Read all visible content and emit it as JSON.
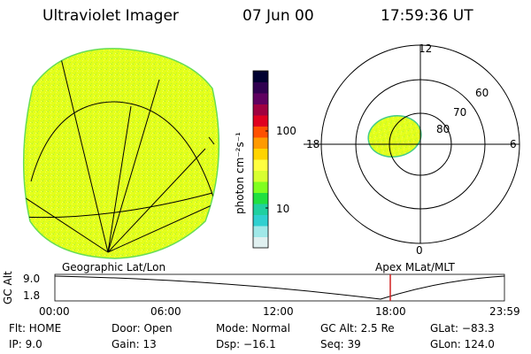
{
  "header": {
    "title": "Ultraviolet Imager",
    "date": "07 Jun 00",
    "time": "17:59:36 UT"
  },
  "colorbar": {
    "unit_label": "photon cm⁻²s⁻¹",
    "ticks": [
      "100",
      "10"
    ],
    "colors": [
      "#000030",
      "#300050",
      "#600060",
      "#a00040",
      "#e00020",
      "#ff5000",
      "#ff9a00",
      "#ffd400",
      "#ffff40",
      "#d8ff30",
      "#80ff20",
      "#20e040",
      "#20d0a0",
      "#30d0d0",
      "#a0e8e8",
      "#e0f0f0"
    ]
  },
  "left_panel": {
    "label": "Geographic Lat/Lon",
    "fill_color": "#e4ff1a",
    "edge_color": "#66dd55"
  },
  "right_panel": {
    "label": "Apex MLat/MLT",
    "mlt_labels": {
      "top": "12",
      "left": "18",
      "right": "6",
      "bottom": "0"
    },
    "lat_labels": [
      "80",
      "70",
      "60"
    ],
    "fill_color": "#e4ff1a"
  },
  "altitude_panel": {
    "y_title": "GC Alt",
    "y_ticks": [
      "9.0",
      "1.8"
    ],
    "x_ticks": [
      "00:00",
      "06:00",
      "12:00",
      "18:00",
      "23:59"
    ],
    "marker_color": "#d02020"
  },
  "info": {
    "flt": "Flt: HOME",
    "ip": "IP:  9.0",
    "door": "Door: Open",
    "gain": "Gain: 13",
    "mode": "Mode: Normal",
    "dsp": "Dsp:  −16.1",
    "gcalt": "GC Alt: 2.5 Re",
    "seq": "Seq: 39",
    "glat": "GLat: −83.3",
    "glon": "GLon: 124.0"
  }
}
